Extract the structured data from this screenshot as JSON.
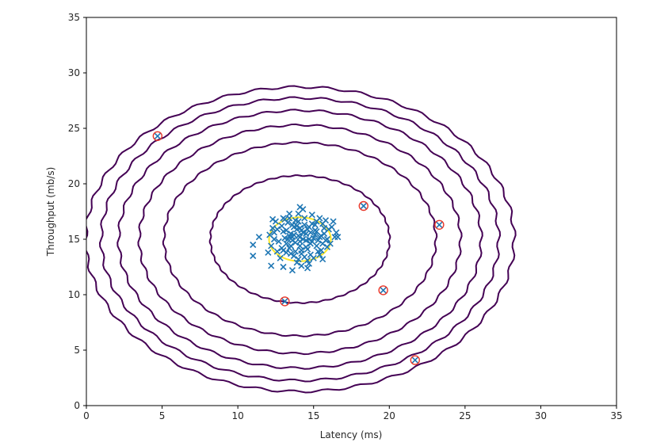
{
  "chart_data": {
    "type": "scatter",
    "title": "",
    "xlabel": "Latency (ms)",
    "ylabel": "Throughput (mb/s)",
    "xlim": [
      0,
      35
    ],
    "ylim": [
      0,
      35
    ],
    "xticks": [
      0,
      5,
      10,
      15,
      20,
      25,
      30,
      35
    ],
    "yticks": [
      0,
      5,
      10,
      15,
      20,
      25,
      30,
      35
    ],
    "grid": false,
    "colors": {
      "points": "#1f77b4",
      "outliers": "#e8382b",
      "contour_outer": "#440154",
      "contour_inner": "#fde725"
    },
    "gaussian": {
      "mean": [
        14.1,
        15.0
      ],
      "sd": [
        1.36,
        1.32
      ]
    },
    "contours": [
      {
        "sigma_scale": 1.5,
        "color": "#fde725"
      },
      {
        "sigma_scale": 4.35,
        "color": "#440154"
      },
      {
        "sigma_scale": 6.6,
        "color": "#440154"
      },
      {
        "sigma_scale": 7.8,
        "color": "#440154"
      },
      {
        "sigma_scale": 8.8,
        "color": "#440154"
      },
      {
        "sigma_scale": 9.65,
        "color": "#440154"
      },
      {
        "sigma_scale": 10.4,
        "color": "#440154"
      }
    ],
    "outliers": [
      {
        "x": 4.7,
        "y": 24.3
      },
      {
        "x": 18.3,
        "y": 18.0
      },
      {
        "x": 23.3,
        "y": 16.3
      },
      {
        "x": 19.6,
        "y": 10.4
      },
      {
        "x": 13.1,
        "y": 9.4
      },
      {
        "x": 21.7,
        "y": 4.1
      }
    ],
    "points": [
      {
        "x": 14.1,
        "y": 15.2
      },
      {
        "x": 13.2,
        "y": 14.6
      },
      {
        "x": 15.1,
        "y": 15.8
      },
      {
        "x": 14.6,
        "y": 14.1
      },
      {
        "x": 13.7,
        "y": 16.1
      },
      {
        "x": 12.4,
        "y": 15.0
      },
      {
        "x": 15.8,
        "y": 14.9
      },
      {
        "x": 14.9,
        "y": 16.4
      },
      {
        "x": 13.5,
        "y": 13.7
      },
      {
        "x": 14.3,
        "y": 15.6
      },
      {
        "x": 12.9,
        "y": 14.2
      },
      {
        "x": 15.5,
        "y": 15.3
      },
      {
        "x": 14.0,
        "y": 13.2
      },
      {
        "x": 13.0,
        "y": 15.7
      },
      {
        "x": 16.0,
        "y": 15.9
      },
      {
        "x": 14.7,
        "y": 15.0
      },
      {
        "x": 13.4,
        "y": 15.3
      },
      {
        "x": 15.2,
        "y": 14.4
      },
      {
        "x": 12.6,
        "y": 15.9
      },
      {
        "x": 14.4,
        "y": 16.9
      },
      {
        "x": 13.8,
        "y": 14.7
      },
      {
        "x": 15.6,
        "y": 16.4
      },
      {
        "x": 14.2,
        "y": 14.0
      },
      {
        "x": 12.2,
        "y": 14.4
      },
      {
        "x": 16.4,
        "y": 15.2
      },
      {
        "x": 13.9,
        "y": 15.9
      },
      {
        "x": 14.8,
        "y": 13.6
      },
      {
        "x": 13.3,
        "y": 16.5
      },
      {
        "x": 15.0,
        "y": 15.1
      },
      {
        "x": 14.5,
        "y": 15.5
      },
      {
        "x": 12.8,
        "y": 13.3
      },
      {
        "x": 15.4,
        "y": 16.9
      },
      {
        "x": 13.6,
        "y": 14.9
      },
      {
        "x": 14.0,
        "y": 16.6
      },
      {
        "x": 15.9,
        "y": 14.3
      },
      {
        "x": 14.2,
        "y": 12.6
      },
      {
        "x": 13.1,
        "y": 15.1
      },
      {
        "x": 15.3,
        "y": 13.9
      },
      {
        "x": 14.6,
        "y": 15.9
      },
      {
        "x": 13.5,
        "y": 15.5
      },
      {
        "x": 12.5,
        "y": 16.6
      },
      {
        "x": 16.2,
        "y": 16.1
      },
      {
        "x": 14.8,
        "y": 14.6
      },
      {
        "x": 13.8,
        "y": 13.9
      },
      {
        "x": 15.7,
        "y": 15.5
      },
      {
        "x": 14.1,
        "y": 14.4
      },
      {
        "x": 13.4,
        "y": 16.9
      },
      {
        "x": 15.1,
        "y": 16.3
      },
      {
        "x": 12.1,
        "y": 15.4
      },
      {
        "x": 14.4,
        "y": 13.4
      },
      {
        "x": 13.7,
        "y": 15.4
      },
      {
        "x": 15.6,
        "y": 14.6
      },
      {
        "x": 14.9,
        "y": 17.2
      },
      {
        "x": 13.2,
        "y": 13.8
      },
      {
        "x": 14.3,
        "y": 15.0
      },
      {
        "x": 15.2,
        "y": 15.7
      },
      {
        "x": 12.7,
        "y": 14.8
      },
      {
        "x": 14.7,
        "y": 16.1
      },
      {
        "x": 13.9,
        "y": 12.9
      },
      {
        "x": 16.5,
        "y": 15.6
      },
      {
        "x": 13.6,
        "y": 16.3
      },
      {
        "x": 14.5,
        "y": 14.3
      },
      {
        "x": 15.4,
        "y": 15.2
      },
      {
        "x": 13.0,
        "y": 14.0
      },
      {
        "x": 14.0,
        "y": 17.3
      },
      {
        "x": 15.0,
        "y": 13.3
      },
      {
        "x": 12.3,
        "y": 16.0
      },
      {
        "x": 14.2,
        "y": 15.8
      },
      {
        "x": 13.3,
        "y": 15.0
      },
      {
        "x": 15.8,
        "y": 16.7
      },
      {
        "x": 14.6,
        "y": 13.1
      },
      {
        "x": 13.8,
        "y": 16.7
      },
      {
        "x": 15.3,
        "y": 14.9
      },
      {
        "x": 14.1,
        "y": 14.8
      },
      {
        "x": 12.9,
        "y": 16.2
      },
      {
        "x": 16.1,
        "y": 14.6
      },
      {
        "x": 14.8,
        "y": 15.6
      },
      {
        "x": 13.5,
        "y": 14.4
      },
      {
        "x": 14.4,
        "y": 16.3
      },
      {
        "x": 15.5,
        "y": 14.0
      },
      {
        "x": 13.1,
        "y": 16.8
      },
      {
        "x": 14.9,
        "y": 14.8
      },
      {
        "x": 13.7,
        "y": 13.5
      },
      {
        "x": 14.3,
        "y": 17.7
      },
      {
        "x": 15.1,
        "y": 15.4
      },
      {
        "x": 12.6,
        "y": 13.9
      },
      {
        "x": 14.0,
        "y": 15.3
      },
      {
        "x": 15.7,
        "y": 16.0
      },
      {
        "x": 13.4,
        "y": 14.2
      },
      {
        "x": 14.7,
        "y": 12.8
      },
      {
        "x": 13.9,
        "y": 16.2
      },
      {
        "x": 15.9,
        "y": 15.0
      },
      {
        "x": 14.2,
        "y": 13.7
      },
      {
        "x": 13.2,
        "y": 15.8
      },
      {
        "x": 15.2,
        "y": 16.6
      },
      {
        "x": 12.4,
        "y": 15.6
      },
      {
        "x": 14.5,
        "y": 14.9
      },
      {
        "x": 13.6,
        "y": 15.2
      },
      {
        "x": 15.4,
        "y": 13.6
      },
      {
        "x": 14.1,
        "y": 16.0
      },
      {
        "x": 11.0,
        "y": 14.5
      },
      {
        "x": 11.0,
        "y": 13.5
      },
      {
        "x": 11.4,
        "y": 15.2
      },
      {
        "x": 12.2,
        "y": 12.6
      },
      {
        "x": 13.0,
        "y": 12.5
      },
      {
        "x": 13.6,
        "y": 12.2
      },
      {
        "x": 13.0,
        "y": 16.9
      },
      {
        "x": 12.3,
        "y": 16.8
      },
      {
        "x": 14.1,
        "y": 17.9
      },
      {
        "x": 16.6,
        "y": 15.2
      },
      {
        "x": 14.6,
        "y": 12.4
      },
      {
        "x": 15.6,
        "y": 13.2
      },
      {
        "x": 16.3,
        "y": 16.6
      },
      {
        "x": 13.4,
        "y": 17.3
      },
      {
        "x": 12.0,
        "y": 13.8
      }
    ]
  }
}
